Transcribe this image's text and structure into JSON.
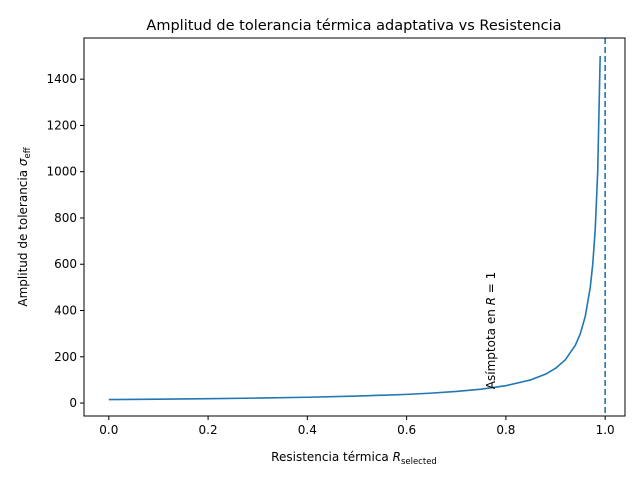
{
  "chart_data": {
    "type": "line",
    "title": "Amplitud de tolerancia térmica adaptativa vs Resistencia",
    "xlabel": {
      "main": "Resistencia térmica ",
      "var": "R",
      "sub": "selected"
    },
    "ylabel": {
      "main": "Amplitud de tolerancia ",
      "var": "σ",
      "sub": "eff"
    },
    "xlim": [
      -0.05,
      1.04
    ],
    "ylim": [
      -56,
      1578
    ],
    "x_ticks": [
      0.0,
      0.2,
      0.4,
      0.6,
      0.8,
      1.0
    ],
    "x_tick_labels": [
      "0.0",
      "0.2",
      "0.4",
      "0.6",
      "0.8",
      "1.0"
    ],
    "y_ticks": [
      0,
      200,
      400,
      600,
      800,
      1000,
      1200,
      1400
    ],
    "y_tick_labels": [
      "0",
      "200",
      "400",
      "600",
      "800",
      "1000",
      "1200",
      "1400"
    ],
    "grid": false,
    "series": [
      {
        "color": "#1f77b4",
        "x": [
          0.0,
          0.1,
          0.2,
          0.3,
          0.4,
          0.5,
          0.6,
          0.65,
          0.7,
          0.75,
          0.8,
          0.85,
          0.88,
          0.9,
          0.92,
          0.94,
          0.95,
          0.96,
          0.97,
          0.975,
          0.98,
          0.985,
          0.99
        ],
        "y": [
          15,
          16.7,
          18.75,
          21.4,
          25,
          30,
          37.5,
          42.9,
          50,
          60,
          75,
          100,
          125,
          150,
          187.5,
          250,
          300,
          375,
          500,
          600,
          750,
          1000,
          1500
        ]
      }
    ],
    "vline": {
      "x": 1.0,
      "color": "#1f77b4",
      "style": "dashed"
    },
    "annotation": {
      "prefix": "Asímptota en ",
      "var": "R",
      "suffix": " = 1",
      "x": 0.77,
      "y": 60,
      "rotation": 90
    }
  }
}
